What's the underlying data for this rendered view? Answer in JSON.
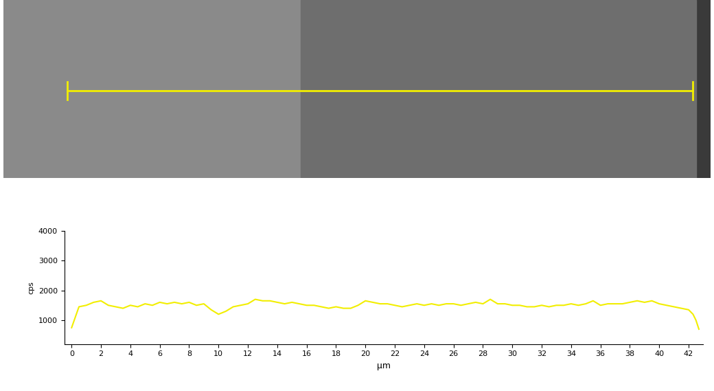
{
  "chart_data": {
    "type": "line",
    "x_label": "µm",
    "y_label": "cps",
    "x": [
      0,
      0.25,
      0.5,
      1,
      1.5,
      2,
      2.5,
      3,
      3.5,
      4,
      4.5,
      5,
      5.5,
      6,
      6.5,
      7,
      7.5,
      8,
      8.5,
      9,
      9.5,
      10,
      10.5,
      11,
      11.5,
      12,
      12.5,
      13,
      13.5,
      14,
      14.5,
      15,
      15.5,
      16,
      16.5,
      17,
      17.5,
      18,
      18.5,
      19,
      19.5,
      20,
      20.5,
      21,
      21.5,
      22,
      22.5,
      23,
      23.5,
      24,
      24.5,
      25,
      25.5,
      26,
      26.5,
      27,
      27.5,
      28,
      28.5,
      29,
      29.5,
      30,
      30.5,
      31,
      31.5,
      32,
      32.5,
      33,
      33.5,
      34,
      34.5,
      35,
      35.5,
      36,
      36.5,
      37,
      37.5,
      38,
      38.5,
      39,
      39.5,
      40,
      40.5,
      41,
      41.5,
      42,
      42.3,
      42.5,
      42.7
    ],
    "values": [
      750,
      1100,
      1450,
      1500,
      1600,
      1650,
      1500,
      1450,
      1400,
      1500,
      1450,
      1550,
      1500,
      1600,
      1550,
      1600,
      1550,
      1600,
      1500,
      1550,
      1350,
      1200,
      1300,
      1450,
      1500,
      1550,
      1700,
      1650,
      1650,
      1600,
      1550,
      1600,
      1550,
      1500,
      1500,
      1450,
      1400,
      1450,
      1400,
      1400,
      1500,
      1650,
      1600,
      1550,
      1550,
      1500,
      1450,
      1500,
      1550,
      1500,
      1550,
      1500,
      1550,
      1550,
      1500,
      1550,
      1600,
      1550,
      1700,
      1550,
      1550,
      1500,
      1500,
      1450,
      1450,
      1500,
      1450,
      1500,
      1500,
      1550,
      1500,
      1550,
      1650,
      1500,
      1550,
      1550,
      1550,
      1600,
      1650,
      1600,
      1650,
      1550,
      1500,
      1450,
      1400,
      1350,
      1200,
      1000,
      700
    ],
    "color": "#f2ee00",
    "xlim": [
      -0.5,
      43
    ],
    "xticks": [
      0,
      2,
      4,
      6,
      8,
      10,
      12,
      14,
      16,
      18,
      20,
      22,
      24,
      26,
      28,
      30,
      32,
      34,
      36,
      38,
      40,
      42
    ],
    "ylim": [
      200,
      4000
    ],
    "yticks": [
      1000,
      2000,
      3000,
      4000
    ],
    "grid": false
  }
}
